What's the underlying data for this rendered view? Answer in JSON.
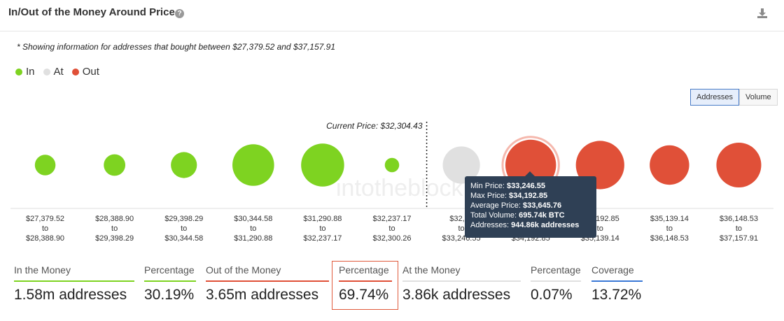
{
  "header": {
    "title": "In/Out of the Money Around Price",
    "help_icon": "question-icon",
    "download_icon": "download-icon"
  },
  "note": "* Showing information for addresses that bought between $27,379.52 and $37,157.91",
  "legend": [
    {
      "label": "In",
      "color": "#7ed321"
    },
    {
      "label": "At",
      "color": "#e0e0e0"
    },
    {
      "label": "Out",
      "color": "#e05038"
    }
  ],
  "toggle": {
    "addresses": "Addresses",
    "volume": "Volume"
  },
  "chart_data": {
    "type": "bubble",
    "current_price_label": "Current Price: $32,304.43",
    "watermark": "intotheblock",
    "bins": [
      {
        "from": "$27,379.52",
        "to": "$28,388.90",
        "status": "In",
        "size": 0.18
      },
      {
        "from": "$28,388.90",
        "to": "$29,398.29",
        "status": "In",
        "size": 0.2
      },
      {
        "from": "$29,398.29",
        "to": "$30,344.58",
        "status": "In",
        "size": 0.3
      },
      {
        "from": "$30,344.58",
        "to": "$31,290.88",
        "status": "In",
        "size": 0.65
      },
      {
        "from": "$31,290.88",
        "to": "$32,237.17",
        "status": "In",
        "size": 0.68
      },
      {
        "from": "$32,237.17",
        "to": "$32,300.26",
        "status": "In",
        "size": 0.04
      },
      {
        "from": "$32,30",
        "to": "$33,246.55",
        "status": "At",
        "size": 0.55
      },
      {
        "from": "$33,246.55",
        "to": "$34,192.85",
        "status": "Out",
        "size": 0.85,
        "highlighted": true
      },
      {
        "from": "$34,192.85",
        "to": "$35,139.14",
        "status": "Out",
        "size": 0.8
      },
      {
        "from": "$35,139.14",
        "to": "$36,148.53",
        "status": "Out",
        "size": 0.6
      },
      {
        "from": "$36,148.53",
        "to": "$37,157.91",
        "status": "Out",
        "size": 0.72
      }
    ],
    "to_word": "to",
    "tooltip": {
      "min_price_label": "Min Price:",
      "min_price": "$33,246.55",
      "max_price_label": "Max Price:",
      "max_price": "$34,192.85",
      "avg_price_label": "Average Price:",
      "avg_price": "$33,645.76",
      "volume_label": "Total Volume:",
      "volume": "695.74k BTC",
      "addresses_label": "Addresses:",
      "addresses": "944.86k addresses"
    }
  },
  "stats": [
    {
      "label": "In the Money",
      "value": "1.58m addresses",
      "color": "#7ed321"
    },
    {
      "label": "Percentage",
      "value": "30.19%",
      "color": "#7ed321"
    },
    {
      "label": "Out of the Money",
      "value": "3.65m addresses",
      "color": "#e05038"
    },
    {
      "label": "Percentage",
      "value": "69.74%",
      "color": "#e05038"
    },
    {
      "label": "At the Money",
      "value": "3.86k addresses",
      "color": "#e0e0e0"
    },
    {
      "label": "Percentage",
      "value": "0.07%",
      "color": "#e0e0e0"
    },
    {
      "label": "Coverage",
      "value": "13.72%",
      "color": "#3a78d6"
    }
  ]
}
